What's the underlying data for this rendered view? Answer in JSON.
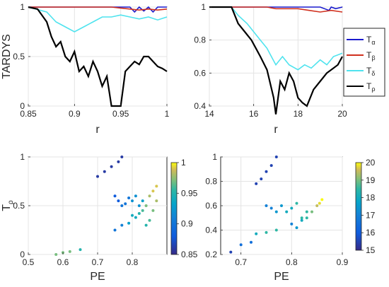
{
  "figure": {
    "top_ylabel": "TARDYS",
    "bottom_ylabel": "T",
    "bottom_ylabel_sub": "ρ"
  },
  "legend": {
    "entries": [
      {
        "base": "T",
        "sub": "α",
        "color": "#1a1acd"
      },
      {
        "base": "T",
        "sub": "β",
        "color": "#d0301e"
      },
      {
        "base": "T",
        "sub": "δ",
        "color": "#4fe3ee"
      },
      {
        "base": "T",
        "sub": "ρ",
        "color": "#000000"
      }
    ]
  },
  "chart_data": [
    {
      "type": "line",
      "panel": "top-left",
      "xlabel": "r",
      "ylabel": "TARDYS",
      "xlim": [
        0.85,
        1.0
      ],
      "ylim": [
        0,
        1
      ],
      "xticks": [
        "0.85",
        "0.9",
        "0.95",
        "1"
      ],
      "yticks": [
        "0",
        "0.5",
        "1"
      ],
      "grid": true,
      "series": [
        {
          "name": "Tα",
          "color": "#1a1acd",
          "x": [
            0.85,
            0.87,
            0.9,
            0.92,
            0.94,
            0.96,
            0.965,
            0.97,
            0.975,
            0.98,
            0.985,
            0.99,
            0.995,
            1.0
          ],
          "y": [
            1,
            1,
            1,
            1,
            1,
            1,
            0.95,
            1,
            0.96,
            1,
            0.95,
            1,
            1,
            1
          ]
        },
        {
          "name": "Tβ",
          "color": "#d0301e",
          "x": [
            0.85,
            0.87,
            0.9,
            0.92,
            0.94,
            0.95,
            0.96,
            0.97,
            0.98,
            0.99,
            1.0
          ],
          "y": [
            1,
            1,
            1,
            1,
            1,
            0.99,
            0.98,
            0.97,
            0.98,
            0.97,
            0.98
          ]
        },
        {
          "name": "Tδ",
          "color": "#4fe3ee",
          "x": [
            0.85,
            0.87,
            0.88,
            0.89,
            0.9,
            0.91,
            0.92,
            0.93,
            0.94,
            0.95,
            0.96,
            0.97,
            0.98,
            0.99,
            1.0
          ],
          "y": [
            1,
            0.95,
            0.85,
            0.8,
            0.75,
            0.8,
            0.85,
            0.9,
            0.9,
            0.92,
            0.9,
            0.88,
            0.9,
            0.87,
            0.9
          ]
        },
        {
          "name": "Tρ",
          "color": "#000000",
          "x": [
            0.85,
            0.86,
            0.87,
            0.875,
            0.88,
            0.885,
            0.89,
            0.895,
            0.9,
            0.905,
            0.91,
            0.915,
            0.92,
            0.925,
            0.93,
            0.935,
            0.94,
            0.945,
            0.95,
            0.955,
            0.96,
            0.965,
            0.97,
            0.975,
            0.98,
            0.985,
            0.99,
            0.995,
            1.0
          ],
          "y": [
            1,
            0.98,
            0.85,
            0.7,
            0.6,
            0.65,
            0.5,
            0.45,
            0.55,
            0.35,
            0.4,
            0.3,
            0.45,
            0.35,
            0.2,
            0.3,
            0.0,
            0.0,
            0.0,
            0.35,
            0.4,
            0.45,
            0.42,
            0.5,
            0.5,
            0.45,
            0.4,
            0.38,
            0.35
          ]
        }
      ]
    },
    {
      "type": "line",
      "panel": "top-right",
      "xlabel": "r",
      "ylabel": "",
      "xlim": [
        14,
        20
      ],
      "ylim": [
        0.4,
        1.0
      ],
      "xticks": [
        "14",
        "16",
        "18",
        "20"
      ],
      "yticks": [
        "0.4",
        "0.6",
        "0.8",
        "1"
      ],
      "grid": true,
      "series": [
        {
          "name": "Tα",
          "color": "#1a1acd",
          "x": [
            14,
            15,
            16,
            17,
            18,
            19,
            19.4,
            19.5,
            19.7,
            20
          ],
          "y": [
            1,
            1,
            1,
            1,
            1,
            1,
            0.98,
            1,
            0.99,
            1
          ]
        },
        {
          "name": "Tβ",
          "color": "#d0301e",
          "x": [
            14,
            15,
            16,
            16.6,
            17,
            18,
            18.5,
            19,
            19.5,
            20
          ],
          "y": [
            1,
            1,
            1,
            1,
            0.99,
            0.99,
            0.98,
            0.97,
            0.98,
            0.97
          ]
        },
        {
          "name": "Tδ",
          "color": "#4fe3ee",
          "x": [
            14,
            15,
            15.3,
            15.7,
            16,
            16.3,
            16.6,
            16.8,
            17,
            17.3,
            17.6,
            18,
            18.3,
            18.6,
            19,
            19.3,
            19.6,
            20
          ],
          "y": [
            1,
            1,
            0.95,
            0.9,
            0.85,
            0.8,
            0.75,
            0.7,
            0.65,
            0.7,
            0.65,
            0.62,
            0.65,
            0.63,
            0.68,
            0.65,
            0.7,
            0.72
          ]
        },
        {
          "name": "Tρ",
          "color": "#000000",
          "x": [
            14,
            15.0,
            15.3,
            15.6,
            15.9,
            16.1,
            16.3,
            16.6,
            16.9,
            17.0,
            17.2,
            17.4,
            17.6,
            17.8,
            18.0,
            18.2,
            18.4,
            18.7,
            19.0,
            19.3,
            19.5,
            19.8,
            20.0
          ],
          "y": [
            1,
            1,
            0.9,
            0.85,
            0.8,
            0.75,
            0.7,
            0.62,
            0.45,
            0.35,
            0.55,
            0.5,
            0.6,
            0.55,
            0.45,
            0.42,
            0.4,
            0.5,
            0.55,
            0.6,
            0.62,
            0.65,
            0.7
          ]
        }
      ]
    },
    {
      "type": "scatter",
      "panel": "bottom-left",
      "xlabel": "PE",
      "ylabel": "Tρ",
      "xlim": [
        0.5,
        0.9
      ],
      "ylim": [
        0,
        1
      ],
      "xticks": [
        "0.5",
        "0.6",
        "0.7",
        "0.8"
      ],
      "yticks": [
        "0",
        "0.5",
        "1"
      ],
      "colorbar": {
        "range": [
          0.85,
          1.0
        ],
        "ticks": [
          "0.85",
          "0.9",
          "0.95",
          "1"
        ]
      },
      "grid": true,
      "series": [
        {
          "name": "",
          "points": [
            [
              0.7,
              0.8,
              0.86
            ],
            [
              0.72,
              0.85,
              0.86
            ],
            [
              0.74,
              0.9,
              0.86
            ],
            [
              0.76,
              0.95,
              0.86
            ],
            [
              0.77,
              1.0,
              0.86
            ],
            [
              0.75,
              0.6,
              0.88
            ],
            [
              0.76,
              0.55,
              0.88
            ],
            [
              0.77,
              0.5,
              0.9
            ],
            [
              0.78,
              0.52,
              0.9
            ],
            [
              0.79,
              0.58,
              0.9
            ],
            [
              0.8,
              0.55,
              0.92
            ],
            [
              0.81,
              0.6,
              0.92
            ],
            [
              0.82,
              0.5,
              0.92
            ],
            [
              0.83,
              0.55,
              0.93
            ],
            [
              0.8,
              0.4,
              0.94
            ],
            [
              0.81,
              0.38,
              0.94
            ],
            [
              0.82,
              0.42,
              0.95
            ],
            [
              0.83,
              0.45,
              0.96
            ],
            [
              0.84,
              0.5,
              0.97
            ],
            [
              0.85,
              0.6,
              0.98
            ],
            [
              0.86,
              0.65,
              0.99
            ],
            [
              0.87,
              0.7,
              0.99
            ],
            [
              0.84,
              0.3,
              0.95
            ],
            [
              0.85,
              0.35,
              0.96
            ],
            [
              0.86,
              0.45,
              0.97
            ],
            [
              0.87,
              0.55,
              0.98
            ],
            [
              0.75,
              0.25,
              0.9
            ],
            [
              0.77,
              0.3,
              0.91
            ],
            [
              0.79,
              0.32,
              0.93
            ],
            [
              0.65,
              0.05,
              0.95
            ],
            [
              0.6,
              0.02,
              0.97
            ],
            [
              0.58,
              0.0,
              0.97
            ],
            [
              0.62,
              0.03,
              0.97
            ]
          ]
        }
      ]
    },
    {
      "type": "scatter",
      "panel": "bottom-right",
      "xlabel": "PE",
      "ylabel": "",
      "xlim": [
        0.66,
        0.9
      ],
      "ylim": [
        0.2,
        1.0
      ],
      "xticks": [
        "0.7",
        "0.8",
        "0.9"
      ],
      "yticks": [
        "0.2",
        "0.4",
        "0.6",
        "0.8",
        "1"
      ],
      "colorbar": {
        "range": [
          15,
          20
        ],
        "ticks": [
          "15",
          "16",
          "17",
          "18",
          "19",
          "20"
        ]
      },
      "grid": true,
      "series": [
        {
          "name": "",
          "points": [
            [
              0.73,
              0.78,
              15.5
            ],
            [
              0.74,
              0.82,
              15.5
            ],
            [
              0.75,
              0.88,
              15.5
            ],
            [
              0.76,
              0.93,
              15.5
            ],
            [
              0.77,
              1.0,
              15.5
            ],
            [
              0.75,
              0.6,
              17
            ],
            [
              0.76,
              0.58,
              17
            ],
            [
              0.77,
              0.55,
              17.5
            ],
            [
              0.78,
              0.6,
              17.5
            ],
            [
              0.79,
              0.55,
              18
            ],
            [
              0.8,
              0.58,
              18
            ],
            [
              0.81,
              0.62,
              18.5
            ],
            [
              0.82,
              0.5,
              18.5
            ],
            [
              0.83,
              0.55,
              18.5
            ],
            [
              0.8,
              0.45,
              17
            ],
            [
              0.81,
              0.42,
              17.5
            ],
            [
              0.82,
              0.48,
              18
            ],
            [
              0.83,
              0.5,
              18.5
            ],
            [
              0.84,
              0.55,
              19
            ],
            [
              0.85,
              0.6,
              19.5
            ],
            [
              0.86,
              0.65,
              20
            ],
            [
              0.855,
              0.62,
              19.8
            ],
            [
              0.73,
              0.37,
              18
            ],
            [
              0.75,
              0.38,
              18.5
            ],
            [
              0.77,
              0.4,
              18.5
            ],
            [
              0.7,
              0.28,
              16.5
            ],
            [
              0.72,
              0.3,
              16.5
            ],
            [
              0.68,
              0.22,
              15.5
            ]
          ]
        }
      ]
    }
  ]
}
